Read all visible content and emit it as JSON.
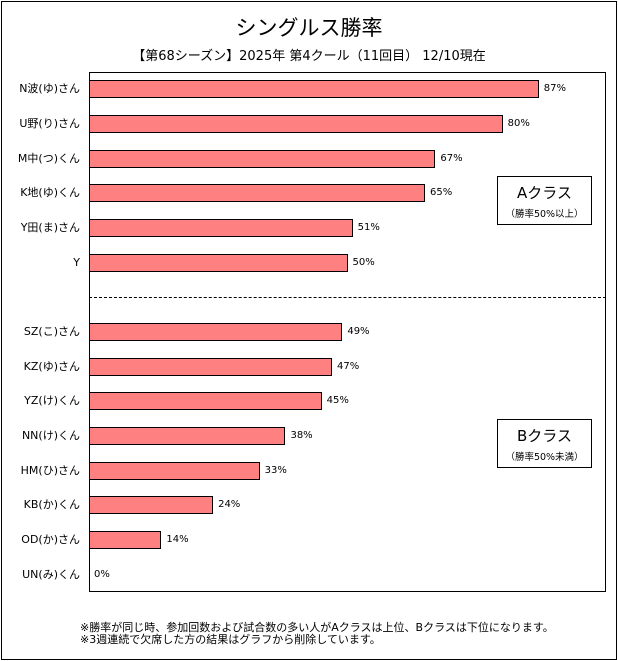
{
  "chart_data": {
    "type": "bar",
    "orientation": "horizontal",
    "title": "シングルス勝率",
    "subtitle": "【第68シーズン】2025年 第4クール（11回目） 12/10現在",
    "xlim": [
      0,
      100
    ],
    "value_suffix": "%",
    "bar_color": "#ff8080",
    "categories": [
      "N波(ゆ)さん",
      "U野(り)さん",
      "M中(つ)くん",
      "K地(ゆ)くん",
      "Y田(ま)さん",
      "Y",
      "SZ(こ)さん",
      "KZ(ゆ)さん",
      "YZ(け)くん",
      "NN(け)くん",
      "HM(ひ)さん",
      "KB(か)くん",
      "OD(か)さん",
      "UN(み)くん"
    ],
    "values": [
      87,
      80,
      67,
      65,
      51,
      50,
      49,
      47,
      45,
      38,
      33,
      24,
      14,
      0
    ],
    "groups": [
      {
        "name": "Aクラス",
        "note": "（勝率50%以上）",
        "count": 6
      },
      {
        "name": "Bクラス",
        "note": "（勝率50%未満）",
        "count": 8
      }
    ]
  },
  "notes": [
    "※勝率が同じ時、参加回数および試合数の多い人がAクラスは上位、Bクラスは下位になります。",
    "※3週連続で欠席した方の結果はグラフから削除しています。"
  ]
}
